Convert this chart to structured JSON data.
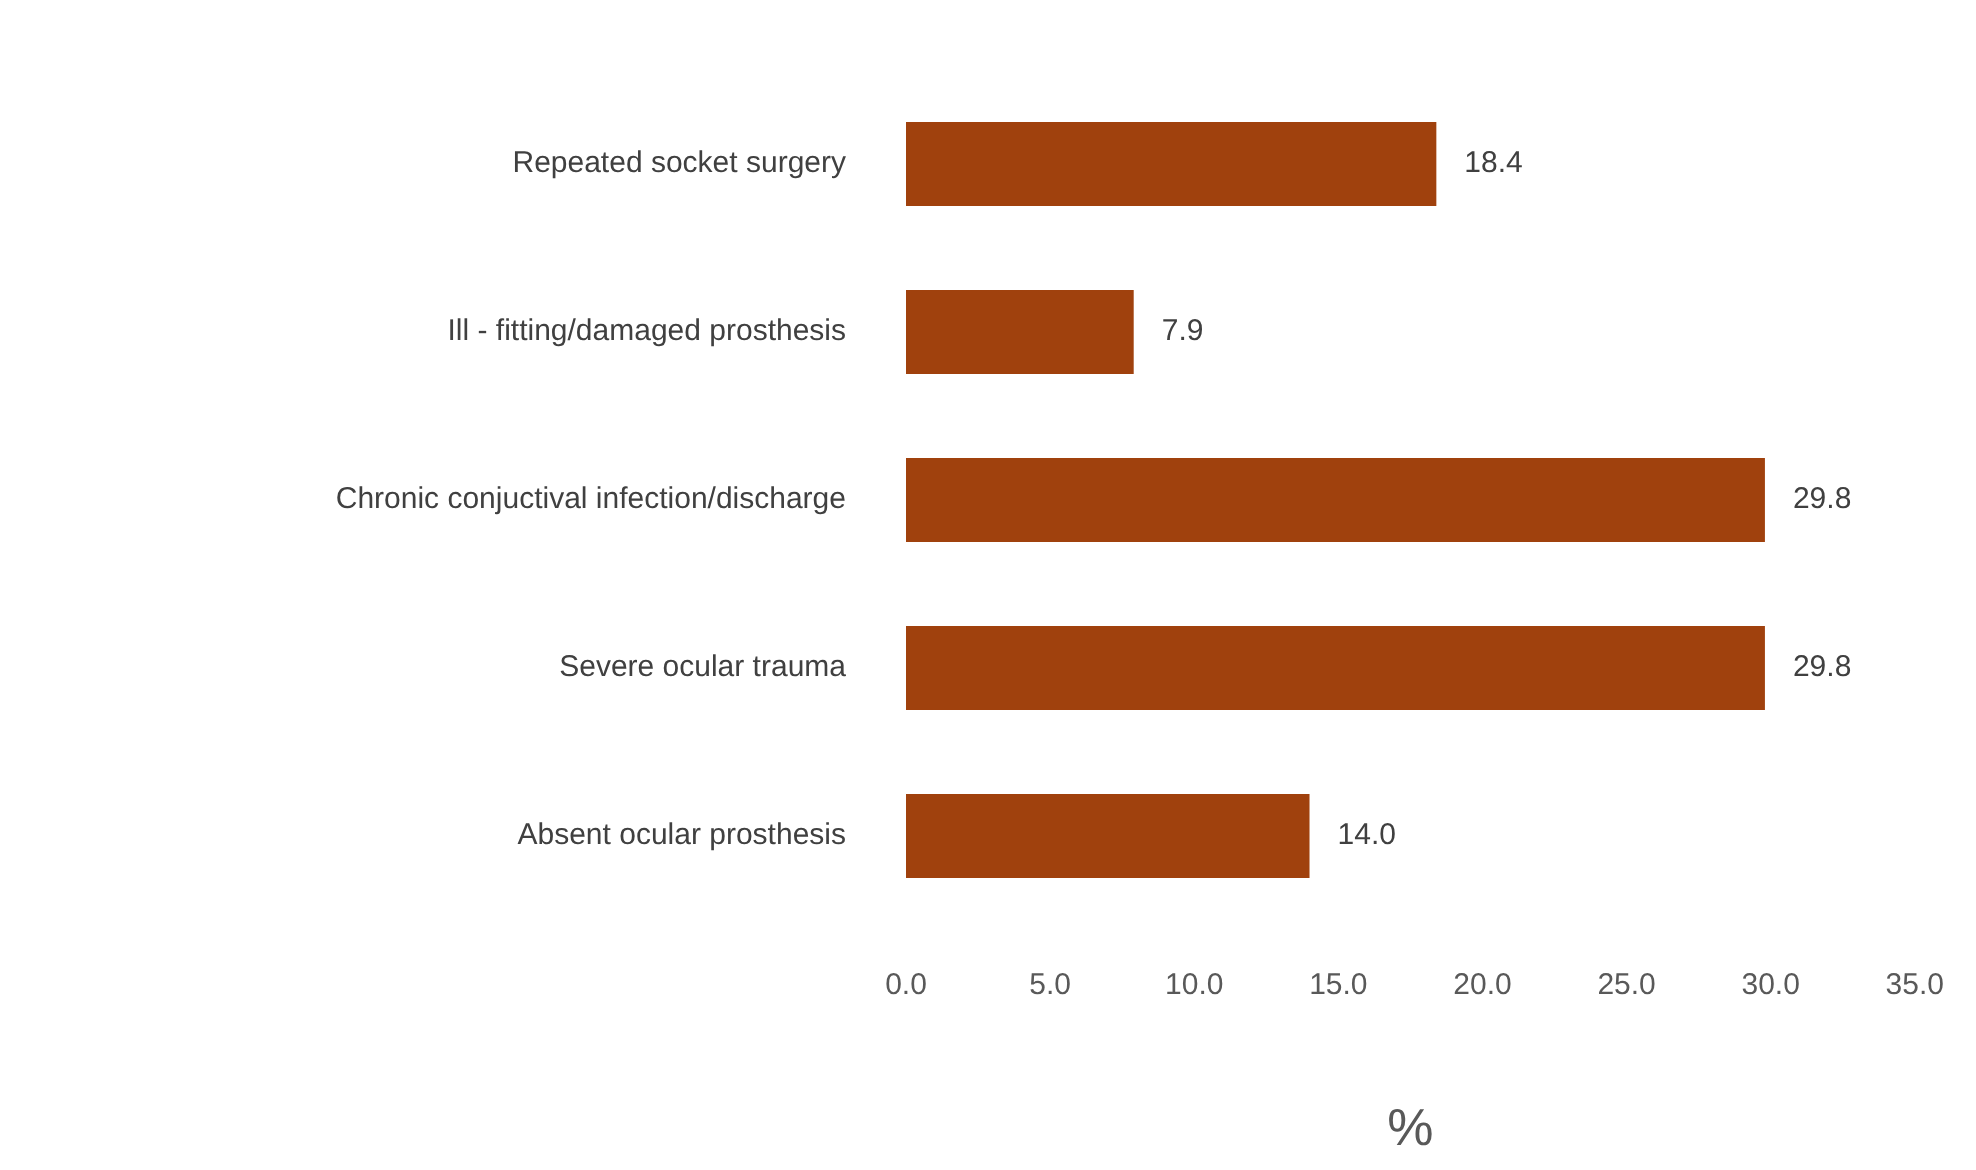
{
  "chart_data": {
    "type": "bar",
    "orientation": "horizontal",
    "xlabel": "%",
    "categories": [
      "Repeated socket surgery",
      "Ill - fitting/damaged prosthesis",
      "Chronic conjuctival infection/discharge",
      "Severe ocular trauma",
      "Absent ocular prosthesis"
    ],
    "values": [
      18.4,
      7.9,
      29.8,
      29.8,
      14.0
    ],
    "value_labels": [
      "18.4",
      "7.9",
      "29.8",
      "29.8",
      "14.0"
    ],
    "color": "#a0410d",
    "xlim": [
      0,
      35
    ],
    "xticks": [
      {
        "value": 0,
        "label": "0.0"
      },
      {
        "value": 5,
        "label": "5.0"
      },
      {
        "value": 10,
        "label": "10.0"
      },
      {
        "value": 15,
        "label": "15.0"
      },
      {
        "value": 20,
        "label": "20.0"
      },
      {
        "value": 25,
        "label": "25.0"
      },
      {
        "value": 30,
        "label": "30.0"
      },
      {
        "value": 35,
        "label": "35.0"
      }
    ],
    "grid": false,
    "legend": false
  }
}
